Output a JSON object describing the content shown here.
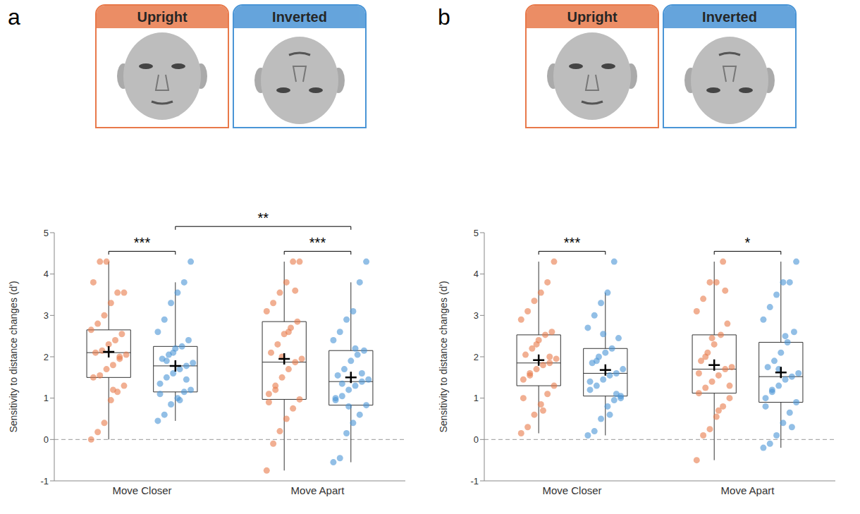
{
  "chart_data": [
    {
      "type": "box",
      "panel_label": "a",
      "categories": [
        "Move Closer",
        "Move Apart"
      ],
      "ylabel": "Sensitivity to distance changes (d')",
      "ylim": [
        -1,
        5
      ],
      "yticks": [
        -1,
        0,
        1,
        2,
        3,
        4,
        5
      ],
      "baseline": 0,
      "series": [
        {
          "name": "Upright",
          "color": "#E8794A",
          "points": [
            [
              0,
              0.18,
              0.4,
              0.95,
              1.15,
              1.3,
              1.5,
              1.55,
              1.7,
              1.8,
              1.95,
              2.05,
              2.1,
              2.15,
              2.3,
              2.4,
              2.55,
              2.65,
              2.8,
              3.0,
              3.3,
              3.55,
              3.55,
              3.8,
              4.3,
              4.3,
              1.2,
              2.0
            ],
            [
              -0.75,
              -0.1,
              0.2,
              0.5,
              0.75,
              0.97,
              1.1,
              1.3,
              1.5,
              1.7,
              1.87,
              1.95,
              2.1,
              2.3,
              2.55,
              2.7,
              2.85,
              3.1,
              3.3,
              3.55,
              3.8,
              4.3,
              4.3,
              0.9,
              1.2,
              2.0,
              2.6,
              3.6
            ]
          ],
          "box": [
            {
              "whisker_low": 0,
              "q1": 1.5,
              "median": 2.1,
              "q3": 2.65,
              "whisker_high": 4.3,
              "mean": 2.12
            },
            {
              "whisker_low": -0.75,
              "q1": 0.97,
              "median": 1.87,
              "q3": 2.85,
              "whisker_high": 4.3,
              "mean": 1.95
            }
          ]
        },
        {
          "name": "Inverted",
          "color": "#4A95D6",
          "points": [
            [
              0.45,
              0.6,
              0.85,
              1.0,
              1.15,
              1.2,
              1.35,
              1.5,
              1.6,
              1.7,
              1.78,
              1.85,
              1.95,
              2.05,
              2.2,
              2.25,
              2.4,
              2.6,
              2.9,
              3.3,
              3.55,
              3.8,
              4.3,
              1.1,
              1.9,
              2.1,
              0.95,
              1.45
            ],
            [
              -0.55,
              -0.45,
              0.15,
              0.4,
              0.6,
              0.83,
              0.95,
              1.05,
              1.2,
              1.3,
              1.4,
              1.45,
              1.55,
              1.7,
              1.9,
              2.05,
              2.15,
              2.4,
              2.6,
              2.9,
              3.1,
              3.8,
              4.3,
              1.0,
              1.35,
              0.8,
              2.2,
              1.6
            ]
          ],
          "box": [
            {
              "whisker_low": 0.45,
              "q1": 1.15,
              "median": 1.78,
              "q3": 2.25,
              "whisker_high": 3.8,
              "mean": 1.78
            },
            {
              "whisker_low": -0.55,
              "q1": 0.83,
              "median": 1.4,
              "q3": 2.15,
              "whisker_high": 3.8,
              "mean": 1.5
            }
          ]
        }
      ],
      "comparisons": [
        {
          "from": [
            "Move Closer",
            "Upright"
          ],
          "to": [
            "Move Closer",
            "Inverted"
          ],
          "label": "***"
        },
        {
          "from": [
            "Move Apart",
            "Upright"
          ],
          "to": [
            "Move Apart",
            "Inverted"
          ],
          "label": "***"
        },
        {
          "from": [
            "Move Closer",
            "Inverted"
          ],
          "to": [
            "Move Apart",
            "Inverted"
          ],
          "label": "**"
        }
      ]
    },
    {
      "type": "box",
      "panel_label": "b",
      "categories": [
        "Move Closer",
        "Move Apart"
      ],
      "ylabel": "Sensitivity to distance changes (d')",
      "ylim": [
        -1,
        5
      ],
      "yticks": [
        -1,
        0,
        1,
        2,
        3,
        4,
        5
      ],
      "baseline": 0,
      "series": [
        {
          "name": "Upright",
          "color": "#E8794A",
          "points": [
            [
              0.15,
              0.3,
              0.6,
              0.85,
              1.1,
              1.3,
              1.45,
              1.55,
              1.7,
              1.8,
              1.85,
              1.95,
              2.05,
              2.2,
              2.4,
              2.53,
              2.6,
              2.9,
              3.1,
              3.35,
              3.55,
              3.8,
              4.3,
              1.0,
              1.6,
              2.3,
              0.7,
              2.0
            ],
            [
              -0.5,
              0.1,
              0.25,
              0.55,
              0.8,
              1.0,
              1.12,
              1.25,
              1.4,
              1.55,
              1.7,
              1.75,
              1.9,
              2.1,
              2.3,
              2.53,
              2.8,
              3.1,
              3.4,
              3.8,
              3.8,
              4.3,
              1.3,
              1.6,
              2.0,
              2.45,
              0.7,
              3.6
            ]
          ],
          "box": [
            {
              "whisker_low": 0.15,
              "q1": 1.3,
              "median": 1.85,
              "q3": 2.53,
              "whisker_high": 4.3,
              "mean": 1.92
            },
            {
              "whisker_low": -0.5,
              "q1": 1.12,
              "median": 1.7,
              "q3": 2.53,
              "whisker_high": 4.3,
              "mean": 1.8
            }
          ]
        },
        {
          "name": "Inverted",
          "color": "#4A95D6",
          "points": [
            [
              0.1,
              0.2,
              0.5,
              0.8,
              0.95,
              1.05,
              1.2,
              1.3,
              1.45,
              1.55,
              1.6,
              1.7,
              1.85,
              2.0,
              2.1,
              2.2,
              2.45,
              2.7,
              3.0,
              3.3,
              3.55,
              4.3,
              1.0,
              1.4,
              1.9,
              2.55,
              0.6,
              1.1
            ],
            [
              -0.2,
              -0.1,
              0.1,
              0.4,
              0.65,
              0.9,
              1.0,
              1.15,
              1.3,
              1.45,
              1.52,
              1.6,
              1.75,
              1.9,
              2.1,
              2.35,
              2.6,
              2.9,
              3.2,
              3.5,
              3.8,
              3.8,
              4.3,
              0.8,
              1.2,
              1.7,
              2.5,
              0.3
            ]
          ],
          "box": [
            {
              "whisker_low": 0.1,
              "q1": 1.05,
              "median": 1.6,
              "q3": 2.2,
              "whisker_high": 3.55,
              "mean": 1.68
            },
            {
              "whisker_low": -0.2,
              "q1": 0.9,
              "median": 1.52,
              "q3": 2.35,
              "whisker_high": 4.3,
              "mean": 1.62
            }
          ]
        }
      ],
      "comparisons": [
        {
          "from": [
            "Move Closer",
            "Upright"
          ],
          "to": [
            "Move Closer",
            "Inverted"
          ],
          "label": "***"
        },
        {
          "from": [
            "Move Apart",
            "Upright"
          ],
          "to": [
            "Move Apart",
            "Inverted"
          ],
          "label": "*"
        }
      ]
    }
  ]
}
